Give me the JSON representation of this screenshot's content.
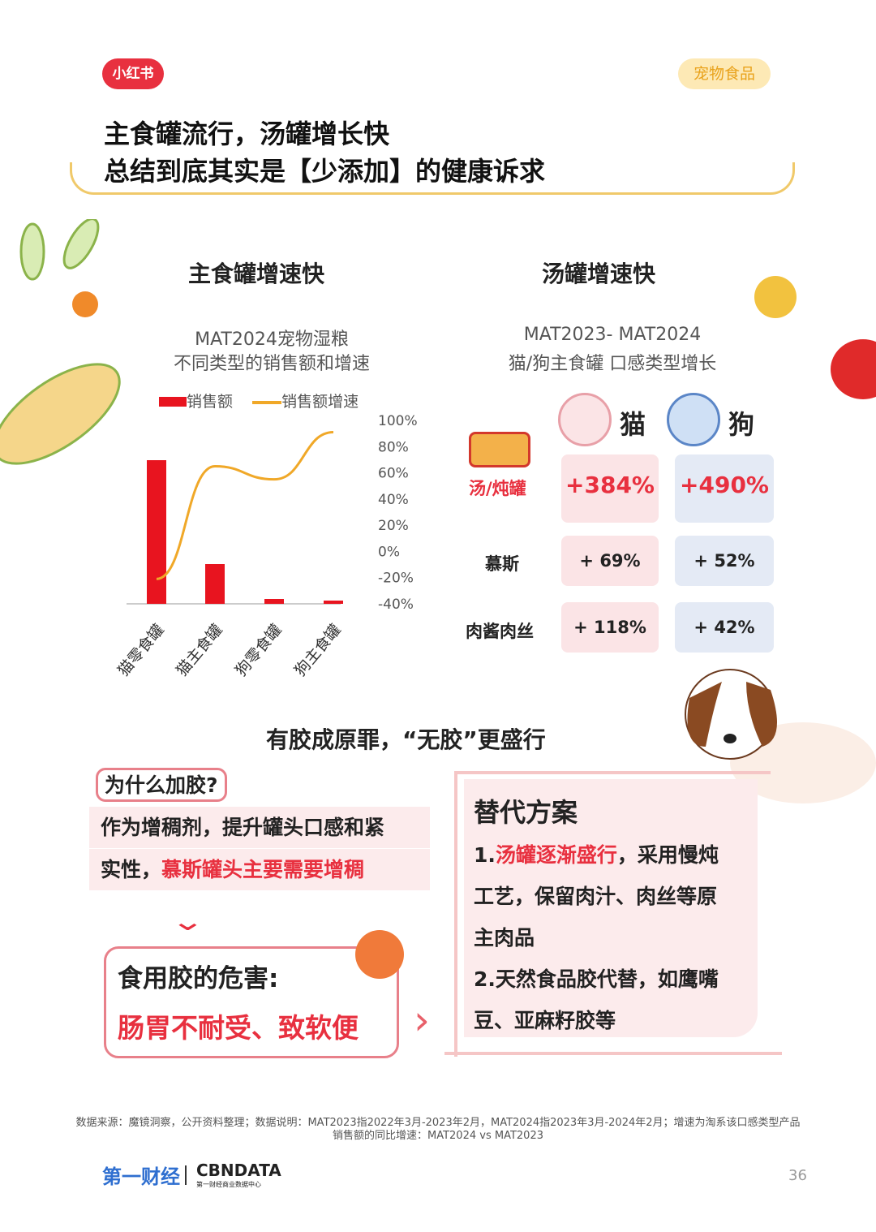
{
  "header": {
    "brand": "小红书",
    "tag": "宠物食品",
    "title_line1": "主食罐流行，汤罐增长快",
    "title_line2": "总结到底其实是【少添加】的健康诉求"
  },
  "left": {
    "heading": "主食罐增速快",
    "subtitle1": "MAT2024宠物湿粮",
    "subtitle2": "不同类型的销售额和增速"
  },
  "chart_data": {
    "type": "bar",
    "title": "MAT2024宠物湿粮 不同类型的销售额和增速",
    "categories": [
      "猫零食罐",
      "猫主食罐",
      "狗零食罐",
      "狗主食罐"
    ],
    "series": [
      {
        "name": "销售额",
        "type": "bar",
        "color": "#e8141f",
        "values": [
          177,
          49,
          6,
          4
        ]
      },
      {
        "name": "销售额增速",
        "type": "line",
        "color": "#f0a828",
        "values": [
          -21,
          65,
          55,
          91
        ]
      }
    ],
    "y2_ticks": [
      "100%",
      "80%",
      "60%",
      "40%",
      "20%",
      "0%",
      "-20%",
      "-40%"
    ],
    "y2lim": [
      -40,
      100
    ],
    "legend": "top"
  },
  "right": {
    "heading": "汤罐增速快",
    "subtitle1": "MAT2023- MAT2024",
    "subtitle2": "猫/狗主食罐 口感类型增长",
    "cols": [
      "猫",
      "狗"
    ],
    "rows": [
      {
        "label": "汤/炖罐",
        "cat": "+384%",
        "dog": "+490%"
      },
      {
        "label": "慕斯",
        "cat": "+ 69%",
        "dog": "+ 52%"
      },
      {
        "label": "肉酱肉丝",
        "cat": "+ 118%",
        "dog": "+ 42%"
      }
    ]
  },
  "bottom": {
    "heading": "有胶成原罪，“无胶”更盛行",
    "why": "为什么加胶?",
    "reason1": "作为增稠剂，提升罐头口感和紧",
    "reason2a": "实性，",
    "reason2b": "慕斯罐头主要需要增稠",
    "harm_title": "食用胶的危害:",
    "harm": "肠胃不耐受、致软便",
    "alt_title": "替代方案",
    "alt1a": "1.",
    "alt1b": "汤罐逐渐盛行",
    "alt1c": "，采用慢炖",
    "alt2": "工艺，保留肉汁、肉丝等原",
    "alt3": "主肉品",
    "alt4": "2.天然食品胶代替，如鹰嘴",
    "alt5": "豆、亚麻籽胶等"
  },
  "footer": {
    "source": "数据来源：魔镜洞察，公开资料整理；数据说明：MAT2023指2022年3月-2023年2月，MAT2024指2023年3月-2024年2月；增速为淘系该口感类型产品",
    "source2": "销售额的同比增速：MAT2024 vs MAT2023",
    "logo1": "第一财经",
    "logo2": "CBNDATA",
    "logo2_sub": "第一财经商业数据中心",
    "page": "36"
  }
}
